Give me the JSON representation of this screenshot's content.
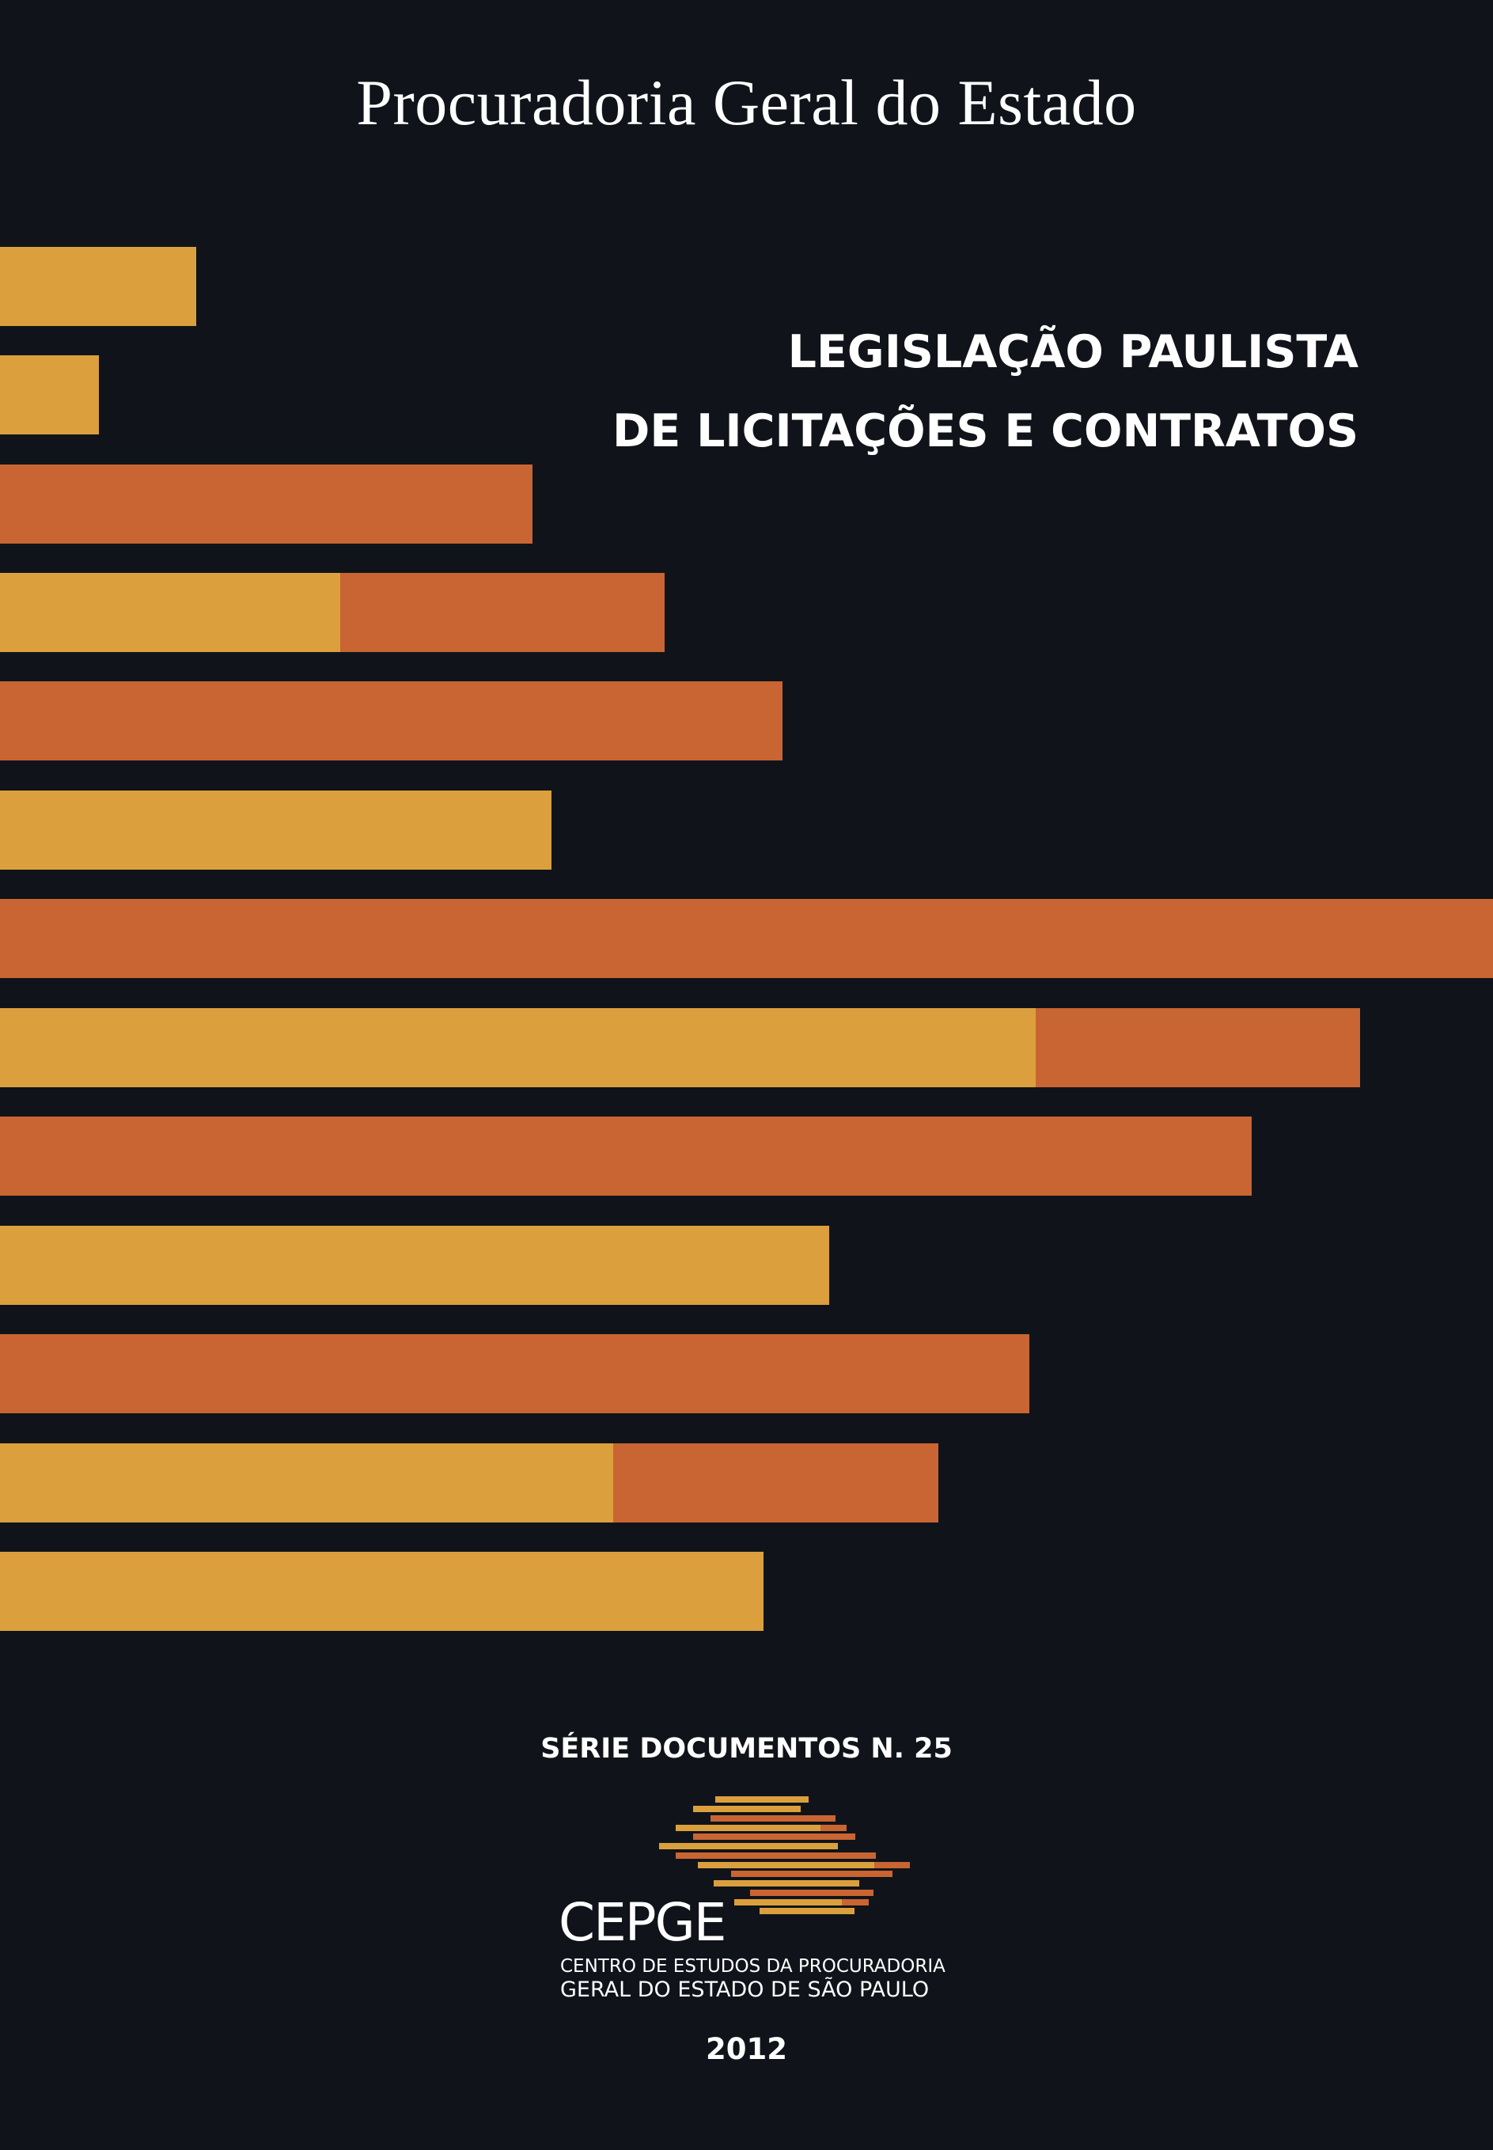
{
  "cover": {
    "publisher": "Procuradoria Geral do Estado",
    "title_line1": "LEGISLAÇÃO PAULISTA",
    "title_line2": "DE LICITAÇÕES E CONTRATOS",
    "series": "SÉRIE DOCUMENTOS N. 25",
    "logo_name": "CEPGE",
    "logo_sub_line1": "CENTRO DE ESTUDOS DA PROCURADORIA",
    "logo_sub_line2": "GERAL DO ESTADO DE SÃO PAULO",
    "year": "2012"
  },
  "colors": {
    "background": "#10141a",
    "gold": "#dba03d",
    "orange": "#c86532",
    "text": "#ffffff"
  }
}
